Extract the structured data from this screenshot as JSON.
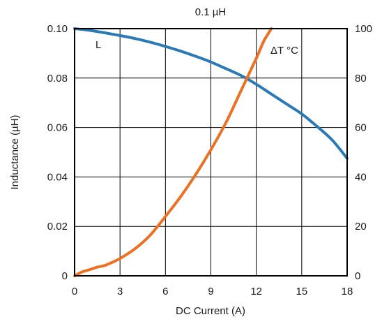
{
  "chart_data": {
    "type": "line",
    "title": "0.1 µH",
    "xlabel": "DC Current (A)",
    "ylabel": "Inductance (µH)",
    "y2label": "",
    "xlim": [
      0,
      18
    ],
    "ylim": [
      0,
      0.1
    ],
    "y2lim": [
      0,
      100
    ],
    "grid": true,
    "xticks": [
      "0",
      "3",
      "6",
      "9",
      "12",
      "15",
      "18"
    ],
    "yticks": [
      "0",
      "0.02",
      "0.04",
      "0.06",
      "0.08",
      "0.10"
    ],
    "y2ticks": [
      "0",
      "20",
      "40",
      "60",
      "80",
      "100"
    ],
    "series": [
      {
        "name": "L",
        "axis": "left",
        "color": "#2a7ab8",
        "x": [
          0,
          1,
          2,
          3,
          4,
          5,
          6,
          7,
          8,
          9,
          10,
          11,
          12,
          13,
          14,
          15,
          16,
          17,
          18
        ],
        "y": [
          0.1,
          0.0993,
          0.0983,
          0.0972,
          0.096,
          0.0945,
          0.0928,
          0.0909,
          0.0888,
          0.0865,
          0.0838,
          0.081,
          0.0775,
          0.0735,
          0.0695,
          0.0655,
          0.0605,
          0.055,
          0.0475
        ]
      },
      {
        "name": "ΔT °C",
        "axis": "right",
        "color": "#ec7124",
        "x": [
          0,
          0.5,
          1,
          1.5,
          2,
          2.5,
          3,
          4,
          5,
          6,
          7,
          8,
          9,
          10,
          11,
          12,
          12.5,
          13
        ],
        "y": [
          0,
          1.6,
          2.5,
          3.5,
          4.2,
          5.5,
          7,
          11,
          16.5,
          24,
          32,
          41,
          51,
          62,
          75,
          88,
          95,
          100
        ]
      }
    ]
  }
}
